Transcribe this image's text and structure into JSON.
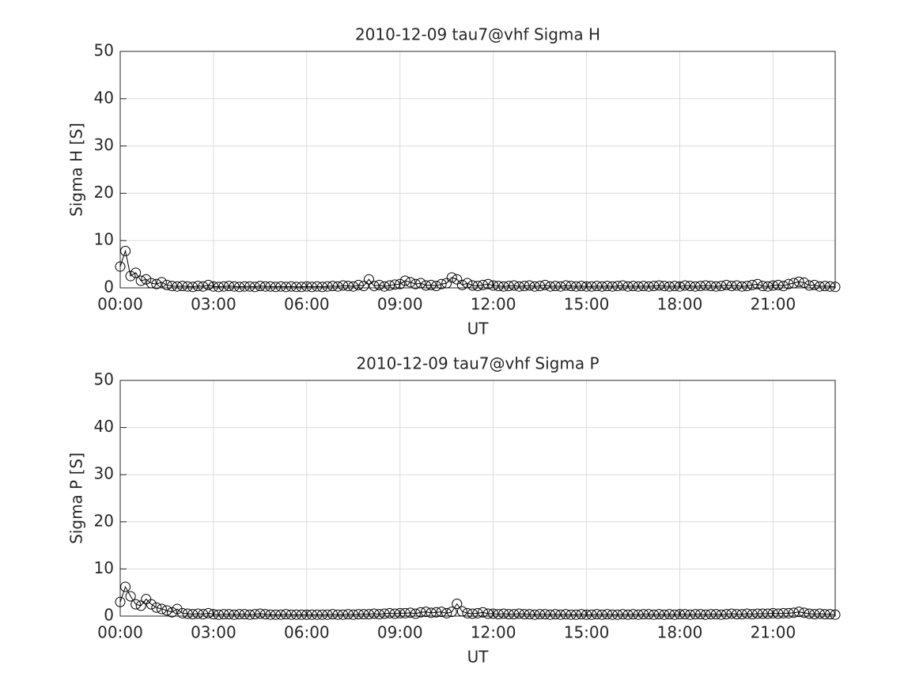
{
  "chart_data": [
    {
      "type": "line",
      "title": "2010-12-09  tau7@vhf Sigma H",
      "xlabel": "UT",
      "ylabel": "Sigma H [S]",
      "color": "#000000",
      "grid": true,
      "xlim": [
        0,
        1380
      ],
      "xticks": [
        {
          "value": 0,
          "label": "00:00"
        },
        {
          "value": 180,
          "label": "03:00"
        },
        {
          "value": 360,
          "label": "06:00"
        },
        {
          "value": 540,
          "label": "09:00"
        },
        {
          "value": 720,
          "label": "12:00"
        },
        {
          "value": 900,
          "label": "15:00"
        },
        {
          "value": 1080,
          "label": "18:00"
        },
        {
          "value": 1260,
          "label": "21:00"
        }
      ],
      "ylim": [
        0,
        50
      ],
      "yticks": [
        0,
        10,
        20,
        30,
        40,
        50
      ],
      "x": [
        0,
        10,
        20,
        30,
        40,
        50,
        60,
        70,
        80,
        90,
        100,
        110,
        120,
        130,
        140,
        150,
        160,
        170,
        180,
        190,
        200,
        210,
        220,
        230,
        240,
        250,
        260,
        270,
        280,
        290,
        300,
        310,
        320,
        330,
        340,
        350,
        360,
        370,
        380,
        390,
        400,
        410,
        420,
        430,
        440,
        450,
        460,
        470,
        480,
        490,
        500,
        510,
        520,
        530,
        540,
        550,
        560,
        570,
        580,
        590,
        600,
        610,
        620,
        630,
        640,
        650,
        660,
        670,
        680,
        690,
        700,
        710,
        720,
        730,
        740,
        750,
        760,
        770,
        780,
        790,
        800,
        810,
        820,
        830,
        840,
        850,
        860,
        870,
        880,
        890,
        900,
        910,
        920,
        930,
        940,
        950,
        960,
        970,
        980,
        990,
        1000,
        1010,
        1020,
        1030,
        1040,
        1050,
        1060,
        1070,
        1080,
        1090,
        1100,
        1110,
        1120,
        1130,
        1140,
        1150,
        1160,
        1170,
        1180,
        1190,
        1200,
        1210,
        1220,
        1230,
        1240,
        1250,
        1260,
        1270,
        1280,
        1290,
        1300,
        1310,
        1320,
        1330,
        1340,
        1350,
        1360,
        1370,
        1380
      ],
      "values": [
        4.5,
        7.8,
        2.5,
        3.2,
        1.5,
        1.8,
        1.0,
        0.8,
        1.2,
        0.6,
        0.4,
        0.3,
        0.4,
        0.3,
        0.2,
        0.4,
        0.3,
        0.6,
        0.3,
        0.2,
        0.3,
        0.4,
        0.3,
        0.2,
        0.3,
        0.3,
        0.2,
        0.4,
        0.3,
        0.3,
        0.2,
        0.3,
        0.2,
        0.3,
        0.2,
        0.2,
        0.3,
        0.2,
        0.3,
        0.2,
        0.3,
        0.4,
        0.3,
        0.5,
        0.4,
        0.3,
        0.6,
        0.4,
        1.8,
        0.4,
        0.6,
        0.3,
        0.5,
        0.7,
        0.8,
        1.5,
        1.2,
        0.8,
        1.0,
        0.5,
        0.6,
        0.4,
        0.8,
        1.0,
        2.2,
        1.8,
        0.6,
        1.0,
        0.5,
        0.4,
        0.6,
        0.8,
        0.5,
        0.4,
        0.3,
        0.4,
        0.5,
        0.3,
        0.4,
        0.5,
        0.3,
        0.4,
        0.6,
        0.3,
        0.4,
        0.3,
        0.5,
        0.4,
        0.3,
        0.4,
        0.3,
        0.3,
        0.4,
        0.3,
        0.4,
        0.3,
        0.4,
        0.5,
        0.3,
        0.4,
        0.3,
        0.4,
        0.3,
        0.4,
        0.5,
        0.4,
        0.3,
        0.4,
        0.3,
        0.5,
        0.4,
        0.3,
        0.4,
        0.5,
        0.4,
        0.3,
        0.4,
        0.6,
        0.4,
        0.5,
        0.3,
        0.4,
        0.6,
        0.8,
        0.4,
        0.3,
        0.5,
        0.6,
        0.4,
        0.8,
        1.0,
        1.3,
        1.1,
        0.5,
        0.6,
        0.3,
        0.4,
        0.3,
        0.2
      ]
    },
    {
      "type": "line",
      "title": "2010-12-09  tau7@vhf Sigma P",
      "xlabel": "UT",
      "ylabel": "Sigma P [S]",
      "color": "#000000",
      "grid": true,
      "xlim": [
        0,
        1380
      ],
      "xticks": [
        {
          "value": 0,
          "label": "00:00"
        },
        {
          "value": 180,
          "label": "03:00"
        },
        {
          "value": 360,
          "label": "06:00"
        },
        {
          "value": 540,
          "label": "09:00"
        },
        {
          "value": 720,
          "label": "12:00"
        },
        {
          "value": 900,
          "label": "15:00"
        },
        {
          "value": 1080,
          "label": "18:00"
        },
        {
          "value": 1260,
          "label": "21:00"
        }
      ],
      "ylim": [
        0,
        50
      ],
      "yticks": [
        0,
        10,
        20,
        30,
        40,
        50
      ],
      "x": [
        0,
        10,
        20,
        30,
        40,
        50,
        60,
        70,
        80,
        90,
        100,
        110,
        120,
        130,
        140,
        150,
        160,
        170,
        180,
        190,
        200,
        210,
        220,
        230,
        240,
        250,
        260,
        270,
        280,
        290,
        300,
        310,
        320,
        330,
        340,
        350,
        360,
        370,
        380,
        390,
        400,
        410,
        420,
        430,
        440,
        450,
        460,
        470,
        480,
        490,
        500,
        510,
        520,
        530,
        540,
        550,
        560,
        570,
        580,
        590,
        600,
        610,
        620,
        630,
        640,
        650,
        660,
        670,
        680,
        690,
        700,
        710,
        720,
        730,
        740,
        750,
        760,
        770,
        780,
        790,
        800,
        810,
        820,
        830,
        840,
        850,
        860,
        870,
        880,
        890,
        900,
        910,
        920,
        930,
        940,
        950,
        960,
        970,
        980,
        990,
        1000,
        1010,
        1020,
        1030,
        1040,
        1050,
        1060,
        1070,
        1080,
        1090,
        1100,
        1110,
        1120,
        1130,
        1140,
        1150,
        1160,
        1170,
        1180,
        1190,
        1200,
        1210,
        1220,
        1230,
        1240,
        1250,
        1260,
        1270,
        1280,
        1290,
        1300,
        1310,
        1320,
        1330,
        1340,
        1350,
        1360,
        1370,
        1380
      ],
      "values": [
        3.0,
        6.2,
        4.2,
        2.5,
        2.2,
        3.6,
        2.5,
        1.8,
        1.5,
        1.2,
        0.8,
        1.5,
        0.6,
        0.5,
        0.4,
        0.5,
        0.4,
        0.6,
        0.4,
        0.3,
        0.4,
        0.4,
        0.3,
        0.4,
        0.4,
        0.3,
        0.4,
        0.5,
        0.4,
        0.3,
        0.3,
        0.3,
        0.4,
        0.3,
        0.3,
        0.3,
        0.3,
        0.3,
        0.3,
        0.3,
        0.3,
        0.4,
        0.3,
        0.3,
        0.4,
        0.3,
        0.4,
        0.4,
        0.4,
        0.5,
        0.4,
        0.5,
        0.6,
        0.5,
        0.6,
        0.6,
        0.7,
        0.5,
        0.8,
        0.9,
        0.7,
        0.8,
        0.9,
        0.6,
        0.9,
        2.6,
        1.0,
        0.6,
        0.5,
        0.6,
        0.8,
        0.5,
        0.5,
        0.4,
        0.5,
        0.4,
        0.4,
        0.5,
        0.4,
        0.4,
        0.3,
        0.4,
        0.4,
        0.3,
        0.4,
        0.3,
        0.4,
        0.3,
        0.3,
        0.4,
        0.3,
        0.3,
        0.4,
        0.3,
        0.4,
        0.3,
        0.3,
        0.4,
        0.3,
        0.4,
        0.3,
        0.4,
        0.4,
        0.3,
        0.4,
        0.3,
        0.4,
        0.3,
        0.4,
        0.4,
        0.3,
        0.4,
        0.4,
        0.3,
        0.4,
        0.4,
        0.3,
        0.4,
        0.5,
        0.4,
        0.4,
        0.5,
        0.4,
        0.5,
        0.5,
        0.5,
        0.6,
        0.5,
        0.6,
        0.6,
        0.7,
        0.9,
        0.7,
        0.5,
        0.4,
        0.5,
        0.4,
        0.4,
        0.3
      ]
    }
  ]
}
